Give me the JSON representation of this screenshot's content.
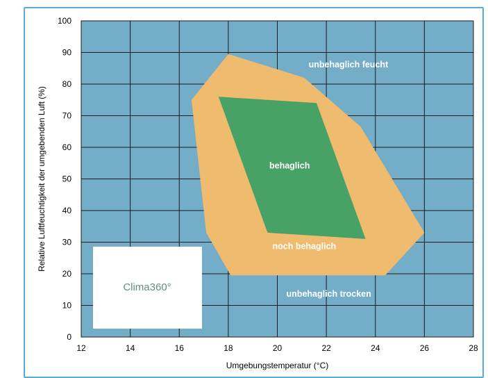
{
  "chart_data": {
    "type": "area",
    "xlabel": "Umgebungstemperatur (°C)",
    "ylabel": "Relative Luftfeuchtigkeit der umgebenden Luft (%)",
    "xlim": [
      12,
      28
    ],
    "ylim": [
      0,
      100
    ],
    "xticks": [
      12,
      14,
      16,
      18,
      20,
      22,
      24,
      26,
      28
    ],
    "yticks": [
      0,
      10,
      20,
      30,
      40,
      50,
      60,
      70,
      80,
      90,
      100
    ],
    "grid": true,
    "regions": [
      {
        "name": "noch behaglich",
        "color": "#efbb6e",
        "points": [
          [
            18,
            89.5
          ],
          [
            21.1,
            82
          ],
          [
            23.4,
            66.5
          ],
          [
            26,
            33
          ],
          [
            24.4,
            19.5
          ],
          [
            18.1,
            19.5
          ],
          [
            17.1,
            33
          ],
          [
            16.5,
            75
          ]
        ]
      },
      {
        "name": "behaglich",
        "color": "#48a265",
        "points": [
          [
            17.6,
            76
          ],
          [
            21.6,
            74
          ],
          [
            23.6,
            31
          ],
          [
            19.6,
            33
          ]
        ]
      }
    ],
    "labels": [
      {
        "text": "unbehaglich feucht",
        "x": 22.9,
        "y": 86
      },
      {
        "text": "behaglich",
        "x": 20.5,
        "y": 54
      },
      {
        "text": "noch behaglich",
        "x": 21.1,
        "y": 28.5
      },
      {
        "text": "unbehaglich trocken",
        "x": 22.1,
        "y": 13.5
      }
    ],
    "colors": {
      "plot_background": "#74adc8",
      "grid": "#1a1a1a"
    }
  },
  "logo": {
    "text": "Clima360°"
  }
}
